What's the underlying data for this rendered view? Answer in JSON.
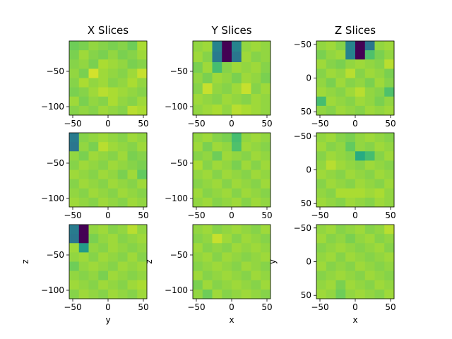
{
  "chart_data": {
    "type": "heatmap",
    "colormap": "viridis",
    "column_titles": [
      "X Slices",
      "Y Slices",
      "Z Slices"
    ],
    "xlabels": [
      "y",
      "x",
      "x"
    ],
    "ylabels": [
      "z",
      "z",
      "y"
    ],
    "panels": [
      {
        "row": 0,
        "col": 0,
        "xlim": [
          -55,
          55
        ],
        "ylim": [
          -112,
          -7
        ],
        "xticks": [
          -50,
          0,
          50
        ],
        "yticks": [
          -50,
          -100
        ],
        "grid": [
          [
            0.78,
            0.8,
            0.84,
            0.82,
            0.8,
            0.82,
            0.78,
            0.88
          ],
          [
            0.8,
            0.86,
            0.82,
            0.8,
            0.84,
            0.8,
            0.82,
            0.86
          ],
          [
            0.82,
            0.84,
            0.8,
            0.88,
            0.86,
            0.84,
            0.8,
            0.82
          ],
          [
            0.84,
            0.8,
            0.94,
            0.86,
            0.84,
            0.82,
            0.86,
            0.92
          ],
          [
            0.82,
            0.88,
            0.84,
            0.86,
            0.82,
            0.84,
            0.88,
            0.84
          ],
          [
            0.8,
            0.82,
            0.86,
            0.9,
            0.88,
            0.86,
            0.84,
            0.82
          ],
          [
            0.86,
            0.8,
            0.84,
            0.82,
            0.88,
            0.84,
            0.82,
            0.86
          ],
          [
            0.82,
            0.84,
            0.82,
            0.86,
            0.84,
            0.82,
            0.9,
            0.88
          ]
        ]
      },
      {
        "row": 0,
        "col": 1,
        "xlim": [
          -55,
          55
        ],
        "ylim": [
          -112,
          -7
        ],
        "xticks": [
          -50,
          0,
          50
        ],
        "yticks": [
          -50,
          -100
        ],
        "grid": [
          [
            0.84,
            0.86,
            0.45,
            0.0,
            0.45,
            0.84,
            0.86,
            0.84
          ],
          [
            0.86,
            0.82,
            0.42,
            0.0,
            0.4,
            0.86,
            0.82,
            0.84
          ],
          [
            0.8,
            0.86,
            0.7,
            0.82,
            0.86,
            0.84,
            0.86,
            0.82
          ],
          [
            0.84,
            0.8,
            0.86,
            0.84,
            0.8,
            0.86,
            0.84,
            0.8
          ],
          [
            0.82,
            0.92,
            0.84,
            0.82,
            0.86,
            0.92,
            0.82,
            0.86
          ],
          [
            0.86,
            0.84,
            0.82,
            0.86,
            0.84,
            0.82,
            0.86,
            0.84
          ],
          [
            0.84,
            0.86,
            0.88,
            0.84,
            0.9,
            0.88,
            0.86,
            0.84
          ]
        ]
      },
      {
        "row": 0,
        "col": 2,
        "xlim": [
          -55,
          55
        ],
        "ylim": [
          -55,
          55
        ],
        "xticks": [
          -50,
          0,
          50
        ],
        "yticks": [
          -50,
          0,
          50
        ],
        "grid": [
          [
            0.84,
            0.86,
            0.82,
            0.45,
            0.0,
            0.4,
            0.84,
            0.86
          ],
          [
            0.8,
            0.84,
            0.86,
            0.45,
            0.0,
            0.72,
            0.8,
            0.84
          ],
          [
            0.86,
            0.82,
            0.8,
            0.84,
            0.86,
            0.84,
            0.82,
            0.9
          ],
          [
            0.82,
            0.86,
            0.84,
            0.9,
            0.82,
            0.86,
            0.84,
            0.8
          ],
          [
            0.84,
            0.8,
            0.86,
            0.82,
            0.84,
            0.8,
            0.86,
            0.82
          ],
          [
            0.86,
            0.84,
            0.82,
            0.86,
            0.9,
            0.84,
            0.82,
            0.72
          ],
          [
            0.7,
            0.86,
            0.84,
            0.82,
            0.86,
            0.84,
            0.8,
            0.84
          ],
          [
            0.84,
            0.82,
            0.86,
            0.84,
            0.82,
            0.86,
            0.84,
            0.86
          ]
        ]
      },
      {
        "row": 1,
        "col": 0,
        "xlim": [
          -55,
          55
        ],
        "ylim": [
          -112,
          -7
        ],
        "xticks": [
          -50,
          0,
          50
        ],
        "yticks": [
          -50,
          -100
        ],
        "grid": [
          [
            0.42,
            0.82,
            0.84,
            0.86,
            0.84,
            0.82,
            0.86,
            0.84
          ],
          [
            0.4,
            0.84,
            0.8,
            0.9,
            0.86,
            0.84,
            0.82,
            0.86
          ],
          [
            0.84,
            0.8,
            0.86,
            0.84,
            0.82,
            0.86,
            0.8,
            0.82
          ],
          [
            0.82,
            0.86,
            0.84,
            0.82,
            0.86,
            0.84,
            0.82,
            0.8
          ],
          [
            0.86,
            0.84,
            0.82,
            0.86,
            0.84,
            0.8,
            0.86,
            0.76
          ],
          [
            0.82,
            0.86,
            0.84,
            0.82,
            0.86,
            0.84,
            0.82,
            0.86
          ],
          [
            0.84,
            0.82,
            0.86,
            0.84,
            0.82,
            0.86,
            0.84,
            0.82
          ],
          [
            0.86,
            0.84,
            0.82,
            0.86,
            0.84,
            0.82,
            0.86,
            0.84
          ]
        ]
      },
      {
        "row": 1,
        "col": 1,
        "xlim": [
          -55,
          55
        ],
        "ylim": [
          -112,
          -7
        ],
        "xticks": [
          -50,
          0,
          50
        ],
        "yticks": [
          -50,
          -100
        ],
        "grid": [
          [
            0.84,
            0.86,
            0.82,
            0.8,
            0.7,
            0.84,
            0.86,
            0.84
          ],
          [
            0.86,
            0.8,
            0.86,
            0.84,
            0.72,
            0.86,
            0.84,
            0.82
          ],
          [
            0.82,
            0.84,
            0.78,
            0.86,
            0.84,
            0.82,
            0.86,
            0.84
          ],
          [
            0.88,
            0.82,
            0.86,
            0.84,
            0.8,
            0.86,
            0.82,
            0.86
          ],
          [
            0.84,
            0.86,
            0.82,
            0.86,
            0.84,
            0.82,
            0.86,
            0.84
          ],
          [
            0.82,
            0.84,
            0.86,
            0.82,
            0.86,
            0.84,
            0.82,
            0.86
          ],
          [
            0.86,
            0.82,
            0.84,
            0.86,
            0.82,
            0.86,
            0.84,
            0.82
          ],
          [
            0.84,
            0.86,
            0.82,
            0.84,
            0.86,
            0.82,
            0.86,
            0.84
          ]
        ]
      },
      {
        "row": 1,
        "col": 2,
        "xlim": [
          -55,
          55
        ],
        "ylim": [
          -55,
          55
        ],
        "xticks": [
          -50,
          0,
          50
        ],
        "yticks": [
          -50,
          0,
          50
        ],
        "grid": [
          [
            0.84,
            0.86,
            0.82,
            0.8,
            0.84,
            0.86,
            0.84,
            0.82
          ],
          [
            0.86,
            0.82,
            0.84,
            0.76,
            0.84,
            0.82,
            0.86,
            0.84
          ],
          [
            0.82,
            0.86,
            0.84,
            0.82,
            0.62,
            0.7,
            0.82,
            0.86
          ],
          [
            0.84,
            0.9,
            0.86,
            0.84,
            0.82,
            0.86,
            0.84,
            0.82
          ],
          [
            0.86,
            0.84,
            0.82,
            0.86,
            0.84,
            0.82,
            0.86,
            0.84
          ],
          [
            0.82,
            0.86,
            0.84,
            0.82,
            0.86,
            0.84,
            0.82,
            0.86
          ],
          [
            0.84,
            0.82,
            0.88,
            0.88,
            0.88,
            0.86,
            0.88,
            0.84
          ],
          [
            0.86,
            0.84,
            0.82,
            0.86,
            0.84,
            0.82,
            0.86,
            0.84
          ]
        ]
      },
      {
        "row": 2,
        "col": 0,
        "xlim": [
          -55,
          55
        ],
        "ylim": [
          -112,
          -7
        ],
        "xticks": [
          -50,
          0,
          50
        ],
        "yticks": [
          -50,
          -100
        ],
        "grid": [
          [
            0.42,
            0.0,
            0.84,
            0.86,
            0.82,
            0.84,
            0.9,
            0.84
          ],
          [
            0.4,
            0.0,
            0.8,
            0.84,
            0.86,
            0.82,
            0.84,
            0.86
          ],
          [
            0.86,
            0.55,
            0.84,
            0.82,
            0.86,
            0.84,
            0.82,
            0.84
          ],
          [
            0.84,
            0.86,
            0.82,
            0.86,
            0.84,
            0.82,
            0.86,
            0.82
          ],
          [
            0.78,
            0.84,
            0.86,
            0.84,
            0.82,
            0.86,
            0.84,
            0.86
          ],
          [
            0.84,
            0.82,
            0.84,
            0.8,
            0.86,
            0.84,
            0.82,
            0.84
          ],
          [
            0.86,
            0.84,
            0.82,
            0.86,
            0.84,
            0.82,
            0.86,
            0.88
          ],
          [
            0.82,
            0.86,
            0.84,
            0.82,
            0.86,
            0.84,
            0.82,
            0.86
          ]
        ]
      },
      {
        "row": 2,
        "col": 1,
        "xlim": [
          -55,
          55
        ],
        "ylim": [
          -112,
          -7
        ],
        "xticks": [
          -50,
          0,
          50
        ],
        "yticks": [
          -50,
          -100
        ],
        "grid": [
          [
            0.84,
            0.86,
            0.82,
            0.84,
            0.86,
            0.84,
            0.82,
            0.86
          ],
          [
            0.82,
            0.84,
            0.92,
            0.86,
            0.82,
            0.86,
            0.84,
            0.82
          ],
          [
            0.86,
            0.82,
            0.84,
            0.82,
            0.86,
            0.84,
            0.86,
            0.84
          ],
          [
            0.84,
            0.86,
            0.82,
            0.86,
            0.84,
            0.82,
            0.84,
            0.86
          ],
          [
            0.82,
            0.84,
            0.86,
            0.84,
            0.82,
            0.86,
            0.84,
            0.82
          ],
          [
            0.86,
            0.82,
            0.84,
            0.86,
            0.84,
            0.82,
            0.86,
            0.84
          ],
          [
            0.8,
            0.86,
            0.82,
            0.84,
            0.86,
            0.84,
            0.82,
            0.86
          ],
          [
            0.84,
            0.78,
            0.86,
            0.82,
            0.84,
            0.86,
            0.84,
            0.82
          ]
        ]
      },
      {
        "row": 2,
        "col": 2,
        "xlim": [
          -55,
          55
        ],
        "ylim": [
          -55,
          55
        ],
        "xticks": [
          -50,
          0,
          50
        ],
        "yticks": [
          -50,
          0,
          50
        ],
        "grid": [
          [
            0.84,
            0.86,
            0.82,
            0.84,
            0.86,
            0.82,
            0.84,
            0.9
          ],
          [
            0.86,
            0.82,
            0.84,
            0.8,
            0.84,
            0.86,
            0.82,
            0.84
          ],
          [
            0.82,
            0.84,
            0.86,
            0.84,
            0.82,
            0.84,
            0.86,
            0.82
          ],
          [
            0.84,
            0.86,
            0.82,
            0.86,
            0.84,
            0.82,
            0.84,
            0.86
          ],
          [
            0.86,
            0.82,
            0.84,
            0.82,
            0.86,
            0.84,
            0.82,
            0.84
          ],
          [
            0.82,
            0.84,
            0.86,
            0.84,
            0.82,
            0.86,
            0.84,
            0.82
          ],
          [
            0.84,
            0.86,
            0.8,
            0.86,
            0.84,
            0.82,
            0.86,
            0.84
          ],
          [
            0.86,
            0.84,
            0.78,
            0.84,
            0.86,
            0.84,
            0.82,
            0.86
          ]
        ]
      }
    ]
  }
}
